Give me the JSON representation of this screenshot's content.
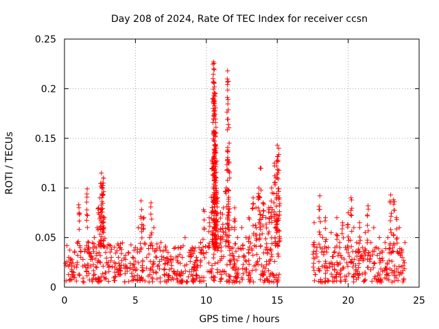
{
  "chart_data": {
    "type": "scatter",
    "title": "Day 208 of 2024, Rate Of TEC Index for receiver ccsn",
    "xlabel": "GPS time / hours",
    "ylabel": "ROTI / TECUs",
    "xlim": [
      0,
      25
    ],
    "ylim": [
      0,
      0.25
    ],
    "xticks": [
      0,
      5,
      10,
      15,
      20,
      25
    ],
    "xtick_labels": [
      "0",
      "5",
      "10",
      "15",
      "20",
      "25"
    ],
    "yticks": [
      0,
      0.05,
      0.1,
      0.15,
      0.2,
      0.25
    ],
    "ytick_labels": [
      "0",
      "0.05",
      "0.1",
      "0.15",
      "0.2",
      "0.25"
    ],
    "grid": true,
    "marker": "+",
    "color": "#ff0000",
    "data_gap_hours": [
      15.2,
      17.5
    ],
    "series": [
      {
        "name": "ROTI",
        "points": [
          [
            0.1,
            0.022
          ],
          [
            0.3,
            0.03
          ],
          [
            0.5,
            0.018
          ],
          [
            0.7,
            0.035
          ],
          [
            0.9,
            0.025
          ],
          [
            1.0,
            0.083
          ],
          [
            1.1,
            0.04
          ],
          [
            1.3,
            0.028
          ],
          [
            1.5,
            0.02
          ],
          [
            1.6,
            0.099
          ],
          [
            1.7,
            0.045
          ],
          [
            1.9,
            0.03
          ],
          [
            2.1,
            0.05
          ],
          [
            2.3,
            0.06
          ],
          [
            2.4,
            0.08
          ],
          [
            2.5,
            0.09
          ],
          [
            2.6,
            0.115
          ],
          [
            2.65,
            0.105
          ],
          [
            2.7,
            0.1
          ],
          [
            2.75,
            0.11
          ],
          [
            2.8,
            0.07
          ],
          [
            2.9,
            0.035
          ],
          [
            3.1,
            0.02
          ],
          [
            3.3,
            0.03
          ],
          [
            3.5,
            0.025
          ],
          [
            3.8,
            0.03
          ],
          [
            4.0,
            0.022
          ],
          [
            4.3,
            0.028
          ],
          [
            4.5,
            0.035
          ],
          [
            4.8,
            0.03
          ],
          [
            5.0,
            0.04
          ],
          [
            5.2,
            0.06
          ],
          [
            5.4,
            0.087
          ],
          [
            5.6,
            0.07
          ],
          [
            5.8,
            0.03
          ],
          [
            6.0,
            0.05
          ],
          [
            6.1,
            0.085
          ],
          [
            6.3,
            0.06
          ],
          [
            6.5,
            0.03
          ],
          [
            6.8,
            0.045
          ],
          [
            7.0,
            0.03
          ],
          [
            7.3,
            0.035
          ],
          [
            7.5,
            0.028
          ],
          [
            7.8,
            0.04
          ],
          [
            8.0,
            0.025
          ],
          [
            8.3,
            0.03
          ],
          [
            8.5,
            0.05
          ],
          [
            8.8,
            0.035
          ],
          [
            9.0,
            0.04
          ],
          [
            9.3,
            0.03
          ],
          [
            9.6,
            0.045
          ],
          [
            9.8,
            0.078
          ],
          [
            10.0,
            0.035
          ],
          [
            10.2,
            0.07
          ],
          [
            10.4,
            0.128
          ],
          [
            10.5,
            0.227
          ],
          [
            10.52,
            0.22
          ],
          [
            10.55,
            0.206
          ],
          [
            10.57,
            0.196
          ],
          [
            10.6,
            0.185
          ],
          [
            10.62,
            0.174
          ],
          [
            10.65,
            0.166
          ],
          [
            10.68,
            0.161
          ],
          [
            10.7,
            0.11
          ],
          [
            10.8,
            0.09
          ],
          [
            11.0,
            0.075
          ],
          [
            11.2,
            0.08
          ],
          [
            11.4,
            0.1
          ],
          [
            11.5,
            0.218
          ],
          [
            11.55,
            0.164
          ],
          [
            11.6,
            0.125
          ],
          [
            11.8,
            0.06
          ],
          [
            12.0,
            0.08
          ],
          [
            12.2,
            0.05
          ],
          [
            12.5,
            0.06
          ],
          [
            12.8,
            0.05
          ],
          [
            13.0,
            0.07
          ],
          [
            13.3,
            0.09
          ],
          [
            13.5,
            0.08
          ],
          [
            13.7,
            0.1
          ],
          [
            13.8,
            0.12
          ],
          [
            14.0,
            0.085
          ],
          [
            14.2,
            0.07
          ],
          [
            14.4,
            0.08
          ],
          [
            14.6,
            0.1
          ],
          [
            14.8,
            0.125
          ],
          [
            14.9,
            0.11
          ],
          [
            15.0,
            0.143
          ],
          [
            15.1,
            0.14
          ],
          [
            15.15,
            0.09
          ],
          [
            17.6,
            0.065
          ],
          [
            17.8,
            0.04
          ],
          [
            18.0,
            0.092
          ],
          [
            18.2,
            0.05
          ],
          [
            18.4,
            0.07
          ],
          [
            18.6,
            0.04
          ],
          [
            18.8,
            0.055
          ],
          [
            19.0,
            0.035
          ],
          [
            19.2,
            0.07
          ],
          [
            19.4,
            0.045
          ],
          [
            19.6,
            0.065
          ],
          [
            19.8,
            0.04
          ],
          [
            20.0,
            0.075
          ],
          [
            20.2,
            0.09
          ],
          [
            20.4,
            0.06
          ],
          [
            20.6,
            0.045
          ],
          [
            20.8,
            0.065
          ],
          [
            21.0,
            0.04
          ],
          [
            21.2,
            0.055
          ],
          [
            21.4,
            0.082
          ],
          [
            21.6,
            0.045
          ],
          [
            21.8,
            0.06
          ],
          [
            22.0,
            0.04
          ],
          [
            22.2,
            0.05
          ],
          [
            22.4,
            0.035
          ],
          [
            22.6,
            0.045
          ],
          [
            22.8,
            0.05
          ],
          [
            23.0,
            0.093
          ],
          [
            23.2,
            0.088
          ],
          [
            23.4,
            0.07
          ],
          [
            23.6,
            0.06
          ],
          [
            23.8,
            0.03
          ],
          [
            24.0,
            0.045
          ]
        ],
        "baseline_segments": [
          {
            "x_start": 0.0,
            "x_end": 15.15,
            "y_min": 0.005,
            "y_max": 0.045
          },
          {
            "x_start": 17.5,
            "x_end": 24.0,
            "y_min": 0.005,
            "y_max": 0.04
          }
        ]
      }
    ]
  }
}
